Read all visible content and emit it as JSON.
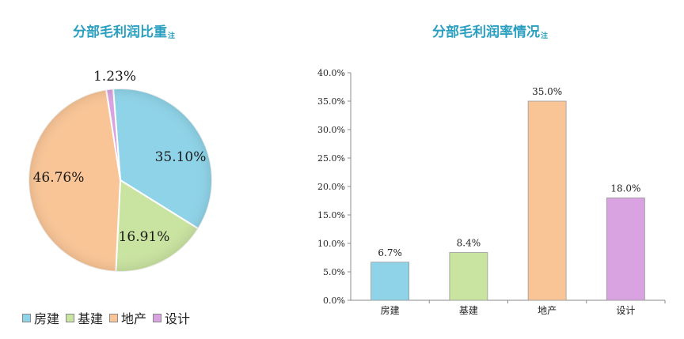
{
  "colors": {
    "title": "#2a9fbf",
    "fangjian": "#8ed3e8",
    "jijian": "#c9e3a0",
    "dichan": "#f9c596",
    "sheji": "#d8a3e0"
  },
  "chart_data": [
    {
      "type": "pie",
      "title": "分部毛利润比重",
      "title_note": "注",
      "categories": [
        "房建",
        "基建",
        "地产",
        "设计"
      ],
      "values": [
        35.1,
        16.91,
        46.76,
        1.23
      ],
      "labels": [
        "35.10%",
        "16.91%",
        "46.76%",
        "1.23%"
      ],
      "legend": "bottom"
    },
    {
      "type": "bar",
      "title": "分部毛利润率情况",
      "title_note": "注",
      "categories": [
        "房建",
        "基建",
        "地产",
        "设计"
      ],
      "values": [
        6.7,
        8.4,
        35.0,
        18.0
      ],
      "labels": [
        "6.7%",
        "8.4%",
        "35.0%",
        "18.0%"
      ],
      "yticks": [
        "0.0%",
        "5.0%",
        "10.0%",
        "15.0%",
        "20.0%",
        "25.0%",
        "30.0%",
        "35.0%",
        "40.0%"
      ],
      "ylim": [
        0,
        40
      ],
      "grid": false
    }
  ]
}
